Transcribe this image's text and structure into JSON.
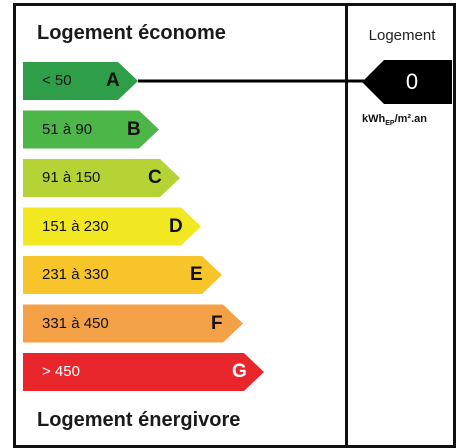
{
  "header": {
    "title_top": "Logement économe",
    "title_bottom": "Logement énergivore",
    "column_label": "Logement"
  },
  "classes": [
    {
      "range": "< 50",
      "letter": "A",
      "color": "#2e9f48",
      "text_color": "#111111"
    },
    {
      "range": "51 à 90",
      "letter": "B",
      "color": "#4cb748",
      "text_color": "#111111"
    },
    {
      "range": "91 à 150",
      "letter": "C",
      "color": "#b5d334",
      "text_color": "#111111"
    },
    {
      "range": "151 à 230",
      "letter": "D",
      "color": "#f2e821",
      "text_color": "#111111"
    },
    {
      "range": "231 à 330",
      "letter": "E",
      "color": "#f7c52a",
      "text_color": "#111111"
    },
    {
      "range": "331 à 450",
      "letter": "F",
      "color": "#f4a047",
      "text_color": "#111111"
    },
    {
      "range": "> 450",
      "letter": "G",
      "color": "#e8262c",
      "text_color": "#ffffff"
    }
  ],
  "indicator": {
    "value": "0",
    "unit_main": "kWh",
    "unit_sub": "EP",
    "unit_rest": "/m².an",
    "points_to_class": "A"
  }
}
